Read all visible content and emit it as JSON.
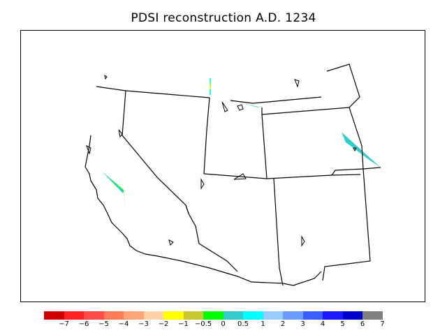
{
  "title": "PDSI reconstruction A.D. 1234",
  "legend": {
    "colors": [
      "#d10000",
      "#ff2020",
      "#ff4a4a",
      "#ff7a55",
      "#ffa57a",
      "#ffd3a5",
      "#ffff00",
      "#c8c832",
      "#00ff00",
      "#33cccc",
      "#00ffff",
      "#99ccff",
      "#6a9cff",
      "#3a5dff",
      "#1a1aff",
      "#0000cc",
      "#7f7f7f"
    ],
    "tick_labels": [
      "−7",
      "−6",
      "−5",
      "−4",
      "−3",
      "−2",
      "−1",
      "−0.5",
      "0",
      "0.5",
      "1",
      "2",
      "3",
      "4",
      "5",
      "6",
      "7"
    ]
  }
}
